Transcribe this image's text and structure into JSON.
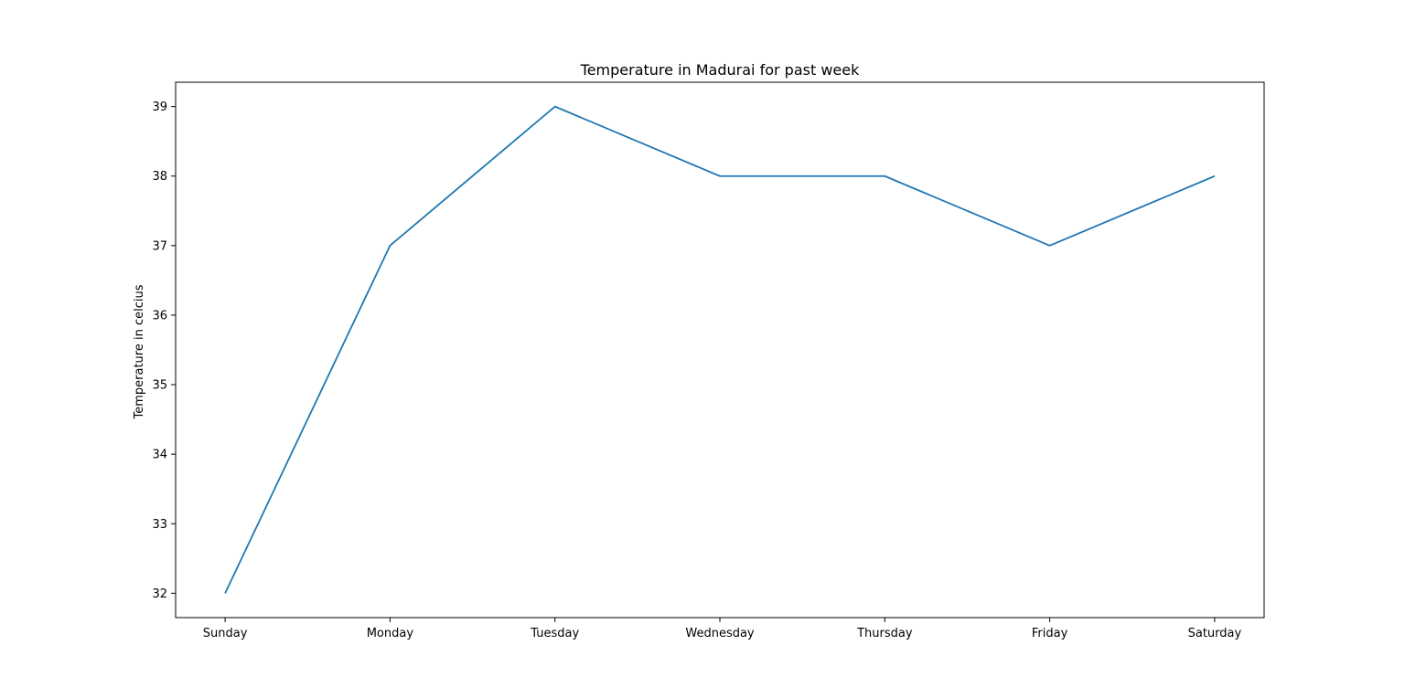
{
  "chart_data": {
    "type": "line",
    "title": "Temperature in Madurai for past week",
    "xlabel": "",
    "ylabel": "Temperature in celcius",
    "categories": [
      "Sunday",
      "Monday",
      "Tuesday",
      "Wednesday",
      "Thursday",
      "Friday",
      "Saturday"
    ],
    "series": [
      {
        "values": [
          32,
          37,
          39,
          38,
          38,
          37,
          38
        ],
        "color": "#1f77b4"
      }
    ],
    "ylim": [
      31.65,
      39.35
    ],
    "yticks": [
      32,
      33,
      34,
      35,
      36,
      37,
      38,
      39
    ],
    "grid": false,
    "legend": "none"
  }
}
